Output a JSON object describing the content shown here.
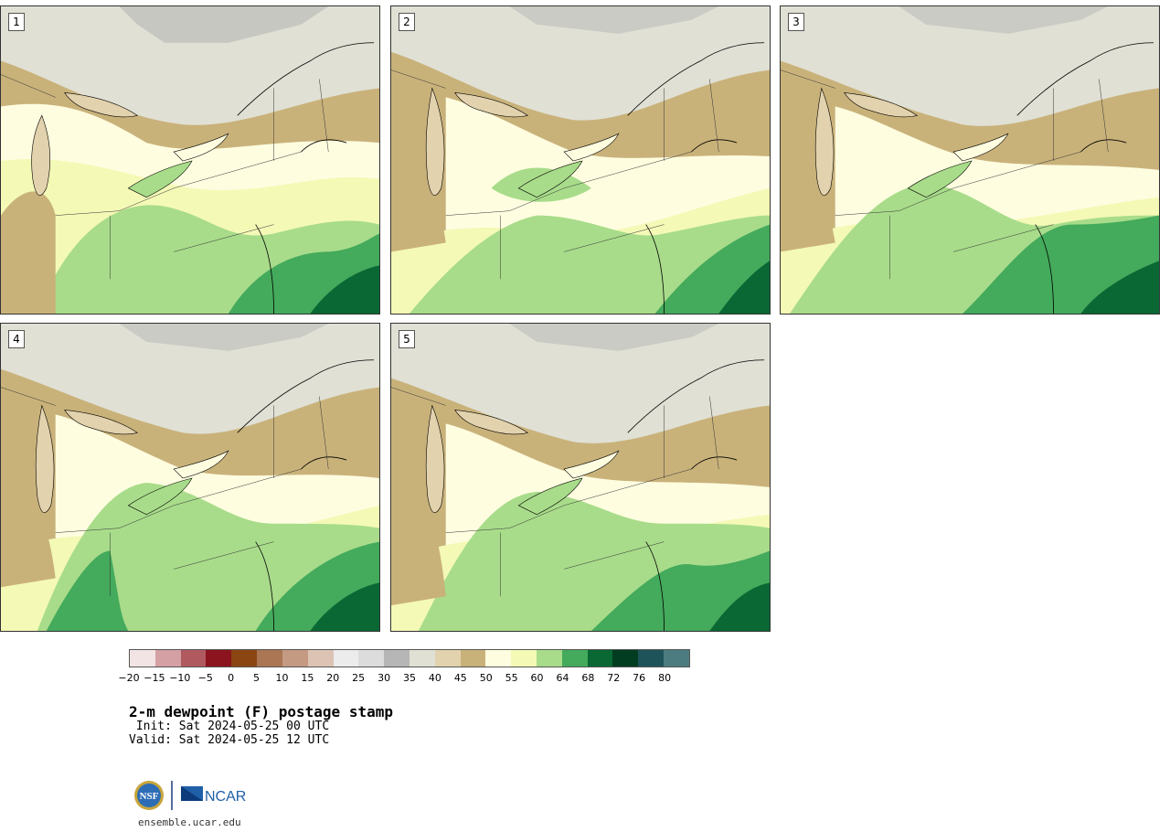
{
  "panels": [
    {
      "label": "1"
    },
    {
      "label": "2"
    },
    {
      "label": "3"
    },
    {
      "label": "4"
    },
    {
      "label": "5"
    }
  ],
  "colorbar": {
    "ticks": [
      "−20",
      "−15",
      "−10",
      "−5",
      "0",
      "5",
      "10",
      "15",
      "20",
      "25",
      "30",
      "35",
      "40",
      "45",
      "50",
      "55",
      "60",
      "64",
      "68",
      "72",
      "76",
      "80"
    ],
    "colors": [
      "#f2e4e4",
      "#d4a0a4",
      "#b05a60",
      "#8b141e",
      "#8b4513",
      "#aa7654",
      "#c49a82",
      "#dcc3b4",
      "#ececec",
      "#dcdcdc",
      "#b6b6b6",
      "#e0e0d5",
      "#e2d2ad",
      "#c9b27a",
      "#fffde0",
      "#f4f9b6",
      "#a8dc8a",
      "#44aa5c",
      "#0a6834",
      "#023d21",
      "#1e5459",
      "#4d7c80"
    ]
  },
  "title": "2-m dewpoint (F) postage stamp",
  "init": " Init: Sat 2024-05-25 00 UTC",
  "valid": "Valid: Sat 2024-05-25 12 UTC",
  "footer": {
    "logo_nsf": "NSF",
    "logo_ncar": "NCAR",
    "site": "ensemble.ucar.edu"
  }
}
